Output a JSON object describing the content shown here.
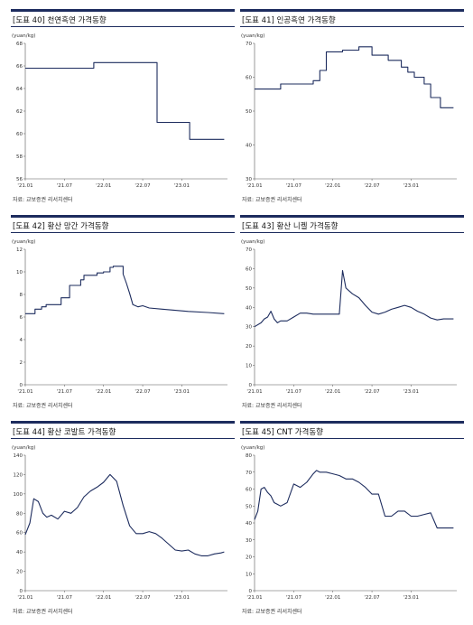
{
  "colors": {
    "line": "#1d2c5e",
    "rule": "#1d2c5e",
    "axis": "#555555"
  },
  "chart_data": [
    {
      "type": "line",
      "title": "[도표 40] 천연흑연 가격동향",
      "unit": "(yuan/kg)",
      "source": "자료: 교보증권 리서치센터",
      "ylim": [
        56,
        68
      ],
      "yticks": [
        "56",
        "58",
        "60",
        "62",
        "64",
        "66",
        "68"
      ],
      "xticks": [
        "'21.01",
        "'21.07",
        "'22.01",
        "'22.07",
        "'23.01"
      ],
      "xlim": [
        0,
        31
      ],
      "x": [
        0,
        10.5,
        10.5,
        20.2,
        20.2,
        25.2,
        25.2,
        30.5
      ],
      "y": [
        65.8,
        65.8,
        66.3,
        66.3,
        61,
        61,
        59.5,
        59.5
      ]
    },
    {
      "type": "line",
      "title": "[도표 41] 인공흑연 가격동향",
      "unit": "(yuan/kg)",
      "source": "자료: 교보증권 리서치센터",
      "ylim": [
        30,
        70
      ],
      "yticks": [
        "30",
        "40",
        "50",
        "60",
        "70"
      ],
      "xticks": [
        "'21.01",
        "'21.07",
        "'22.01",
        "'22.07",
        "'23.01"
      ],
      "xlim": [
        0,
        31
      ],
      "x": [
        0,
        4,
        4,
        9,
        9,
        10,
        10,
        11,
        11,
        13.5,
        13.5,
        16,
        16,
        18,
        18,
        20.5,
        20.5,
        22.5,
        22.5,
        23.5,
        23.5,
        24.5,
        24.5,
        26,
        26,
        27,
        27,
        28.5,
        28.5,
        29.5,
        29.5,
        30.5
      ],
      "y": [
        56.5,
        56.5,
        58,
        58,
        59,
        59,
        62,
        62,
        67.5,
        67.5,
        68,
        68,
        69,
        69,
        66.5,
        66.5,
        65,
        65,
        63,
        63,
        61.5,
        61.5,
        60,
        60,
        58,
        58,
        54,
        54,
        51,
        51,
        51,
        51
      ]
    },
    {
      "type": "line",
      "title": "[도표 42] 황산 망간 가격동향",
      "unit": "(yuan/kg)",
      "source": "자료: 교보증권 리서치센터",
      "ylim": [
        0,
        12
      ],
      "yticks": [
        "0",
        "2",
        "4",
        "6",
        "8",
        "10",
        "12"
      ],
      "xticks": [
        "'21.01",
        "'21.07",
        "'22.01",
        "'22.07",
        "'23.01"
      ],
      "xlim": [
        0,
        31
      ],
      "x": [
        0,
        1.5,
        1.5,
        2.5,
        2.5,
        3.2,
        3.2,
        5.5,
        5.5,
        6.8,
        6.8,
        8.5,
        8.5,
        9,
        9,
        11,
        11,
        12,
        12,
        13,
        13,
        13.5,
        13.5,
        15,
        15,
        15.5,
        16,
        16.5,
        17.3,
        18,
        19,
        21,
        25,
        28,
        30.5
      ],
      "y": [
        6.3,
        6.3,
        6.7,
        6.7,
        6.9,
        6.9,
        7.1,
        7.1,
        7.7,
        7.7,
        8.8,
        8.8,
        9.3,
        9.3,
        9.7,
        9.7,
        9.9,
        9.9,
        10,
        10,
        10.4,
        10.4,
        10.5,
        10.5,
        9.8,
        9,
        8.1,
        7.1,
        6.9,
        7,
        6.8,
        6.7,
        6.5,
        6.4,
        6.3
      ]
    },
    {
      "type": "line",
      "title": "[도표 43] 황산 니켈 가격동향",
      "unit": "(yuan/kg)",
      "source": "자료: 교보증권 리서치센터",
      "ylim": [
        0,
        70
      ],
      "yticks": [
        "0",
        "10",
        "20",
        "30",
        "40",
        "50",
        "60",
        "70"
      ],
      "xticks": [
        "'21.01",
        "'21.07",
        "'22.01",
        "'22.07",
        "'23.01"
      ],
      "xlim": [
        0,
        31
      ],
      "x": [
        0,
        1,
        1.5,
        2,
        2.5,
        3,
        3.5,
        4,
        5,
        6,
        7,
        8,
        9,
        10,
        11,
        12,
        13,
        13.5,
        14,
        15,
        16,
        17,
        18,
        19,
        20,
        21,
        22,
        23,
        24,
        25,
        26,
        27,
        28,
        29,
        30,
        30.5
      ],
      "y": [
        30,
        32,
        34,
        35,
        38,
        34,
        32,
        33,
        33,
        35,
        37,
        37,
        36.5,
        36.5,
        36.5,
        36.5,
        36.5,
        59,
        50,
        47,
        45,
        41,
        37.5,
        36.5,
        37.5,
        39,
        40,
        41,
        40,
        38,
        36.5,
        34.5,
        33.5,
        34,
        34,
        34
      ]
    },
    {
      "type": "line",
      "title": "[도표 44] 황산 코발트 가격동향",
      "unit": "(yuan/kg)",
      "source": "자료: 교보증권 리서치센터",
      "ylim": [
        0,
        140
      ],
      "yticks": [
        "0",
        "20",
        "40",
        "60",
        "80",
        "100",
        "120",
        "140"
      ],
      "xticks": [
        "'21.01",
        "'21.07",
        "'22.01",
        "'22.07",
        "'23.01"
      ],
      "xlim": [
        0,
        31
      ],
      "x": [
        0,
        0.7,
        1.3,
        2,
        2.7,
        3.3,
        4,
        5,
        6,
        7,
        8,
        9,
        10,
        11,
        12,
        13,
        14,
        15,
        16,
        17,
        18,
        19,
        20,
        21,
        22,
        23,
        24,
        25,
        26,
        27,
        28,
        29,
        30,
        30.5
      ],
      "y": [
        58,
        70,
        95,
        92,
        80,
        76,
        78,
        74,
        82,
        80,
        86,
        97,
        103,
        107,
        112,
        120,
        113,
        88,
        67,
        59,
        59,
        61,
        59,
        54,
        48,
        42,
        41,
        42,
        38,
        36,
        36,
        38,
        39,
        40
      ]
    },
    {
      "type": "line",
      "title": "[도표 45] CNT 가격동향",
      "unit": "(yuan/kg)",
      "source": "자료: 교보증권 리서치센터",
      "ylim": [
        0,
        80
      ],
      "yticks": [
        "0",
        "10",
        "20",
        "30",
        "40",
        "50",
        "60",
        "70",
        "80"
      ],
      "xticks": [
        "'21.01",
        "'21.07",
        "'22.01",
        "'22.07",
        "'23.01"
      ],
      "xlim": [
        0,
        31
      ],
      "x": [
        0,
        0.5,
        1,
        1.5,
        2,
        2.5,
        3,
        3.5,
        4,
        5,
        6,
        7,
        8,
        9,
        9.5,
        10,
        11,
        12,
        13,
        14,
        15,
        16,
        17,
        18,
        19,
        20,
        21,
        22,
        23,
        24,
        25,
        26,
        27,
        28,
        29,
        30.5
      ],
      "y": [
        42,
        47,
        60,
        61,
        58,
        56,
        52,
        51,
        50,
        52,
        63,
        61,
        64,
        69,
        71,
        70,
        70,
        69,
        68,
        66,
        66,
        64,
        61,
        57,
        57,
        44,
        44,
        47,
        47,
        44,
        44,
        45,
        46,
        37,
        37,
        37
      ]
    }
  ]
}
